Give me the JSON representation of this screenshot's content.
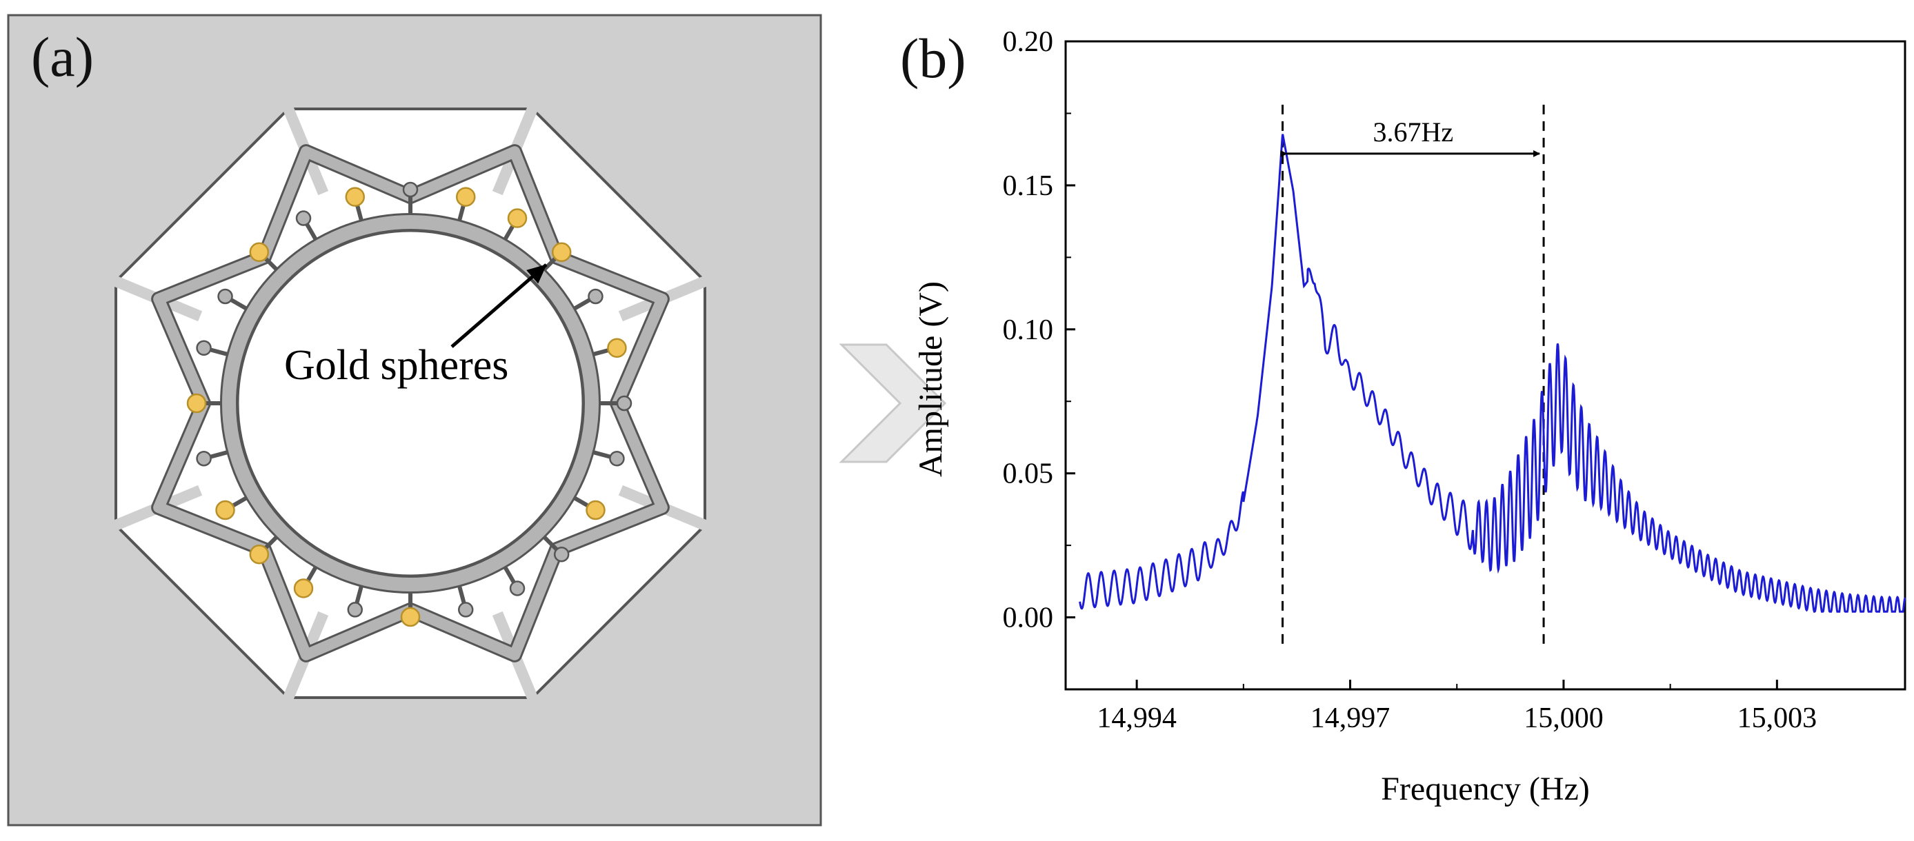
{
  "panel_a": {
    "label": "(a)",
    "annotation": "Gold spheres",
    "colors": {
      "background": "#cfcfcf",
      "structure": "#b4b4b4",
      "outline": "#555555",
      "gold": "#f2c55a",
      "gold_edge": "#b8902a"
    },
    "spheres": [
      {
        "angle": -105,
        "gold": true
      },
      {
        "angle": -90,
        "gold": false
      },
      {
        "angle": -75,
        "gold": true
      },
      {
        "angle": -60,
        "gold": true
      },
      {
        "angle": -45,
        "gold": true
      },
      {
        "angle": -30,
        "gold": false
      },
      {
        "angle": -15,
        "gold": true
      },
      {
        "angle": 0,
        "gold": false
      },
      {
        "angle": 15,
        "gold": false
      },
      {
        "angle": 30,
        "gold": true
      },
      {
        "angle": 45,
        "gold": false
      },
      {
        "angle": 60,
        "gold": false
      },
      {
        "angle": 75,
        "gold": false
      },
      {
        "angle": 90,
        "gold": true
      },
      {
        "angle": 105,
        "gold": false
      },
      {
        "angle": 120,
        "gold": true
      },
      {
        "angle": 135,
        "gold": true
      },
      {
        "angle": 150,
        "gold": true
      },
      {
        "angle": 165,
        "gold": false
      },
      {
        "angle": 180,
        "gold": true
      },
      {
        "angle": 195,
        "gold": false
      },
      {
        "angle": 210,
        "gold": false
      },
      {
        "angle": 225,
        "gold": true
      },
      {
        "angle": 240,
        "gold": false
      }
    ]
  },
  "panel_b": {
    "label": "(b)"
  },
  "arrow": {
    "color": "#e8e8e8",
    "edge": "#c8c8c8"
  },
  "chart_data": {
    "type": "line",
    "title": "",
    "xlabel": "Frequency (Hz)",
    "ylabel": "Amplitude (V)",
    "xlim": [
      14993.0,
      15004.8
    ],
    "ylim": [
      -0.025,
      0.2
    ],
    "xticks": [
      14994,
      14997,
      15000,
      15003
    ],
    "xtick_labels": [
      "14,994",
      "14,997",
      "15,000",
      "15,003"
    ],
    "yticks": [
      0.0,
      0.05,
      0.1,
      0.15,
      0.2
    ],
    "ytick_labels": [
      "0.00",
      "0.05",
      "0.10",
      "0.15",
      "0.20"
    ],
    "line_color": "#1c1cd4",
    "series": [
      {
        "name": "Amplitude",
        "x": [
          14993.2,
          14993.6,
          14994.0,
          14994.4,
          14994.8,
          14995.1,
          14995.3,
          14995.5,
          14995.7,
          14995.9,
          14996.05,
          14996.2,
          14996.35,
          14996.5,
          14996.65,
          14996.8,
          14996.95,
          14997.1,
          14997.3,
          14997.5,
          14997.8,
          14998.2,
          14998.6,
          14999.0,
          14999.3,
          14999.6,
          14999.8,
          14999.95,
          15000.1,
          15000.3,
          15000.5,
          15000.8,
          15001.1,
          15001.5,
          15002.0,
          15002.5,
          15003.0,
          15003.5,
          15004.0,
          15004.5,
          15004.8
        ],
        "y": [
          0.009,
          0.01,
          0.011,
          0.014,
          0.018,
          0.022,
          0.028,
          0.04,
          0.07,
          0.115,
          0.168,
          0.148,
          0.115,
          0.12,
          0.095,
          0.098,
          0.085,
          0.082,
          0.075,
          0.068,
          0.055,
          0.042,
          0.033,
          0.028,
          0.036,
          0.05,
          0.068,
          0.078,
          0.066,
          0.055,
          0.05,
          0.04,
          0.032,
          0.025,
          0.018,
          0.012,
          0.009,
          0.006,
          0.004,
          0.003,
          0.003
        ]
      }
    ],
    "markers": [
      {
        "x": 14996.05,
        "label": ""
      },
      {
        "x": 14999.72,
        "label": ""
      }
    ],
    "annotation": {
      "text": "3.67Hz",
      "from": 14996.05,
      "to": 14999.72,
      "y": 0.161
    }
  }
}
